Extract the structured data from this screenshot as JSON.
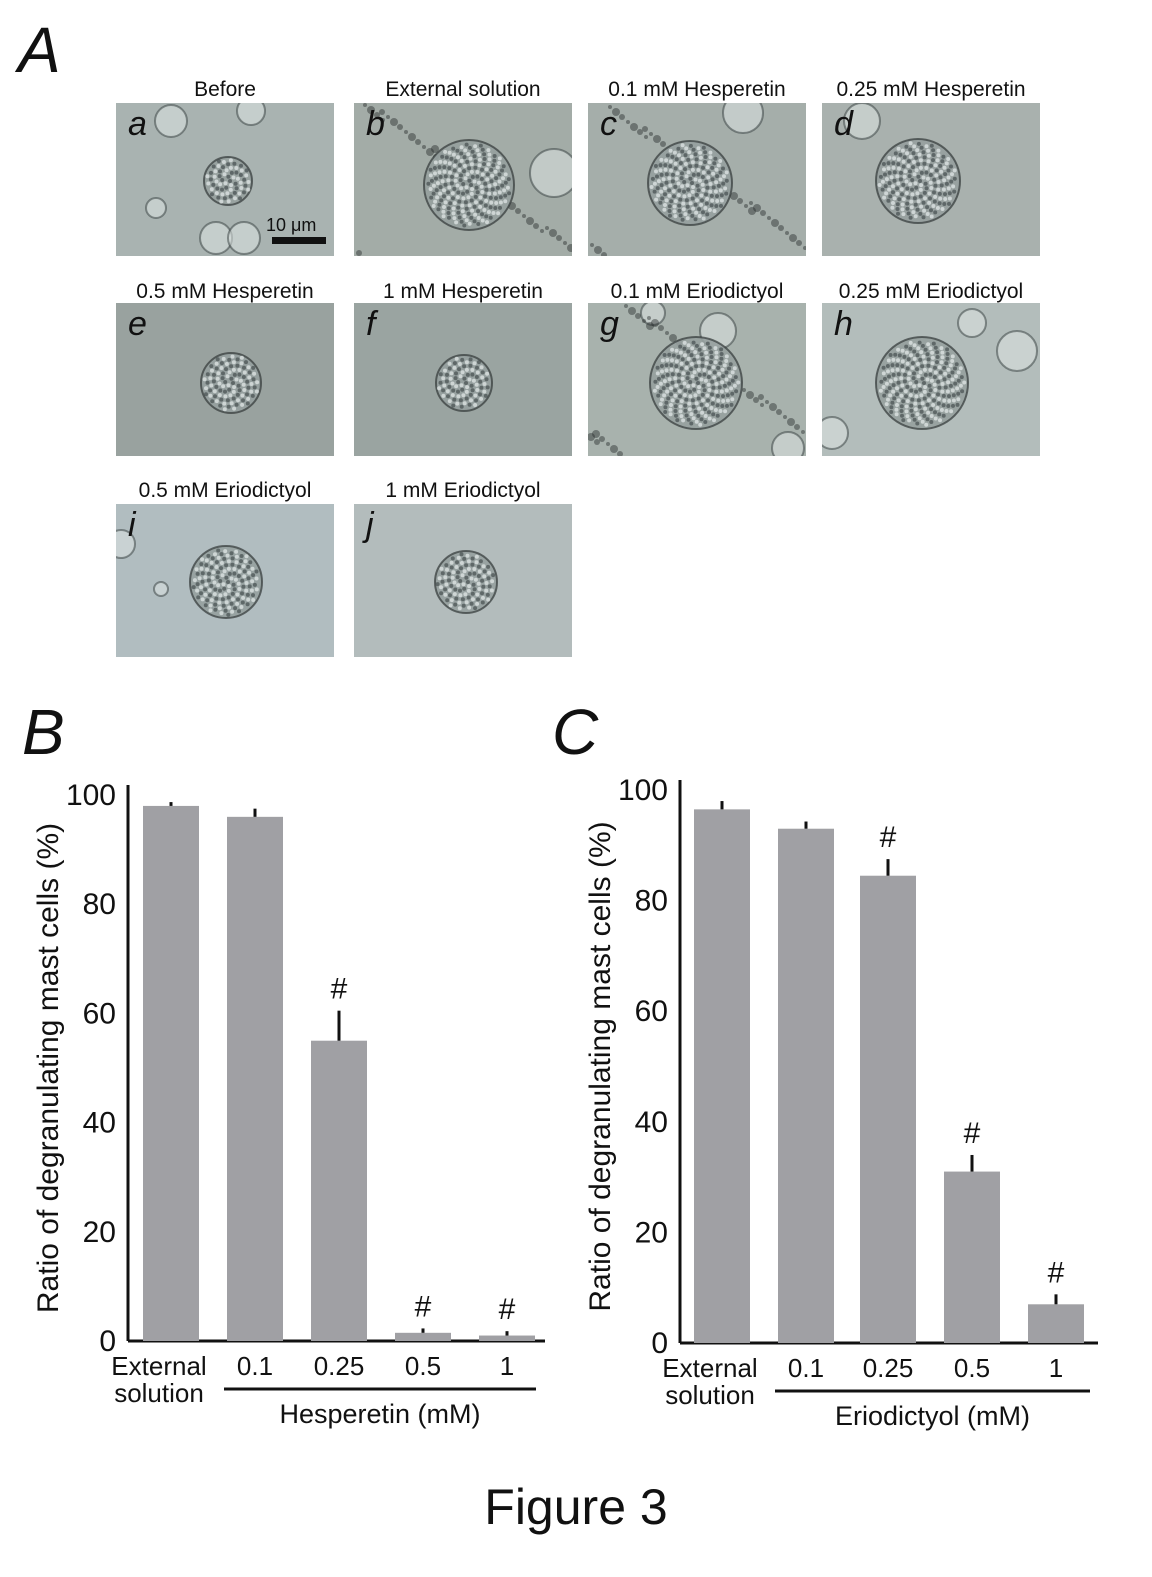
{
  "panel_A": {
    "letter": "A",
    "images": [
      {
        "id": "a",
        "caption": "Before",
        "scale_label": "10 μm",
        "bg": "#a9b3b1"
      },
      {
        "id": "b",
        "caption": "External solution",
        "bg": "#a3aca7"
      },
      {
        "id": "c",
        "caption": "0.1 mM Hesperetin",
        "bg": "#a5aeaa"
      },
      {
        "id": "d",
        "caption": "0.25 mM Hesperetin",
        "bg": "#a9b1ae"
      },
      {
        "id": "e",
        "caption": "0.5 mM Hesperetin",
        "bg": "#99a29f"
      },
      {
        "id": "f",
        "caption": "1 mM Hesperetin",
        "bg": "#9aa4a1"
      },
      {
        "id": "g",
        "caption": "0.1 mM Eriodictyol",
        "bg": "#a8b2ad"
      },
      {
        "id": "h",
        "caption": "0.25 mM Eriodictyol",
        "bg": "#b3bdbb"
      },
      {
        "id": "i",
        "caption": "0.5 mM Eriodictyol",
        "bg": "#b1bdc0"
      },
      {
        "id": "j",
        "caption": "1 mM Eriodictyol",
        "bg": "#b3bcbc"
      }
    ]
  },
  "chart_data": [
    {
      "letter": "B",
      "type": "bar",
      "ylabel": "Ratio of degranulating mast cells (%)",
      "xlabel": "Hesperetin (mM)",
      "categories": [
        "External\nsolution",
        "0.1",
        "0.25",
        "0.5",
        "1"
      ],
      "values": [
        98,
        96,
        55,
        1.5,
        1
      ],
      "errors": [
        0.7,
        1.5,
        5.5,
        0.8,
        0.8
      ],
      "significance": [
        "",
        "",
        "#",
        "#",
        "#"
      ],
      "ylim": [
        0,
        100
      ],
      "yticks": [
        0,
        20,
        40,
        60,
        80,
        100
      ],
      "bar_color": "#a0a0a4"
    },
    {
      "letter": "C",
      "type": "bar",
      "ylabel": "Ratio of degranulating mast cells (%)",
      "xlabel": "Eriodictyol  (mM)",
      "categories": [
        "External\nsolution",
        "0.1",
        "0.25",
        "0.5",
        "1"
      ],
      "values": [
        96.5,
        93,
        84.5,
        31,
        7
      ],
      "errors": [
        1.5,
        1.3,
        3,
        3,
        1.8
      ],
      "significance": [
        "",
        "",
        "#",
        "#",
        "#"
      ],
      "ylim": [
        0,
        100
      ],
      "yticks": [
        0,
        20,
        40,
        60,
        80,
        100
      ],
      "bar_color": "#a0a0a4"
    }
  ],
  "figure_caption": "Figure 3"
}
